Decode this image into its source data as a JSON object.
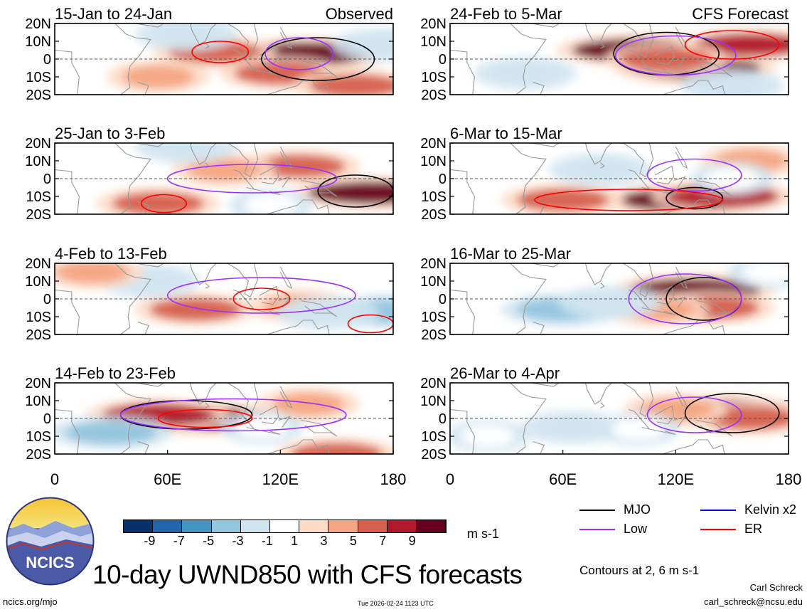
{
  "figure": {
    "main_title": "10-day UWND850 with CFS forecasts",
    "contour_note": "Contours at 2, 6 m s-1",
    "author": "Carl Schreck",
    "email": "carl_schreck@ncsu.edu",
    "website": "ncics.org/mjo",
    "timestamp": "Tue 2026-02-24 1123 UTC",
    "logo_text": "NCICS",
    "column_labels": {
      "left": "Observed",
      "right": "CFS Forecast"
    },
    "units": "m s-1"
  },
  "colors": {
    "observed_palette": [
      "#08306b",
      "#2166ac",
      "#4393c3",
      "#92c5de",
      "#d1e5f0",
      "#ffffff",
      "#fddbc7",
      "#f4a582",
      "#d6604d",
      "#b2182b",
      "#67001f"
    ],
    "mjo": "#000000",
    "low": "#9b30ff",
    "kelvin": "#0000ff",
    "er": "#ff0000",
    "land": "#999999"
  },
  "chart_data": [
    {
      "type": "heatmap",
      "title": "15-Jan to 24-Jan",
      "panel_label": "Observed",
      "xlabel": "",
      "ylabel": "",
      "x_ticks": [
        "0",
        "60E",
        "120E",
        "180"
      ],
      "y_ticks": [
        "20N",
        "10N",
        "0",
        "10S",
        "20S"
      ],
      "xlim": [
        0,
        180
      ],
      "ylim": [
        -20,
        20
      ],
      "anomaly_blobs": [
        {
          "lon": 135,
          "lat": 3,
          "value": 9
        },
        {
          "lon": 85,
          "lat": 4,
          "value": 5
        },
        {
          "lon": 120,
          "lat": -8,
          "value": 5
        },
        {
          "lon": 160,
          "lat": -15,
          "value": 5
        },
        {
          "lon": 55,
          "lat": -10,
          "value": 3
        },
        {
          "lon": 175,
          "lat": 8,
          "value": -3
        },
        {
          "lon": 70,
          "lat": 14,
          "value": -3
        }
      ],
      "contours": [
        {
          "kind": "MJO",
          "lon": 140,
          "lat": 0,
          "rlon": 30,
          "rlat": 12
        },
        {
          "kind": "Low",
          "lon": 130,
          "lat": 3,
          "rlon": 18,
          "rlat": 9
        },
        {
          "kind": "ER",
          "lon": 88,
          "lat": 4,
          "rlon": 15,
          "rlat": 6
        }
      ]
    },
    {
      "type": "heatmap",
      "title": "24-Feb to 5-Mar",
      "panel_label": "CFS Forecast",
      "xlabel": "",
      "ylabel": "",
      "x_ticks": [
        "0",
        "60E",
        "120E",
        "180"
      ],
      "y_ticks": [
        "20N",
        "10N",
        "0",
        "10S",
        "20S"
      ],
      "xlim": [
        0,
        180
      ],
      "ylim": [
        -20,
        20
      ],
      "anomaly_blobs": [
        {
          "lon": 100,
          "lat": 5,
          "value": 9
        },
        {
          "lon": 130,
          "lat": -5,
          "value": 9
        },
        {
          "lon": 160,
          "lat": 8,
          "value": 7
        },
        {
          "lon": 115,
          "lat": 0,
          "value": 5
        },
        {
          "lon": 40,
          "lat": -8,
          "value": -3
        },
        {
          "lon": 150,
          "lat": -15,
          "value": -3
        }
      ],
      "contours": [
        {
          "kind": "MJO",
          "lon": 115,
          "lat": 3,
          "rlon": 28,
          "rlat": 12
        },
        {
          "kind": "Low",
          "lon": 120,
          "lat": 2,
          "rlon": 32,
          "rlat": 11
        },
        {
          "kind": "ER",
          "lon": 150,
          "lat": 8,
          "rlon": 25,
          "rlat": 8
        }
      ]
    },
    {
      "type": "heatmap",
      "title": "25-Jan to 3-Feb",
      "panel_label": "",
      "xlabel": "",
      "ylabel": "",
      "x_ticks": [
        "0",
        "60E",
        "120E",
        "180"
      ],
      "y_ticks": [
        "20N",
        "10N",
        "0",
        "10S",
        "20S"
      ],
      "xlim": [
        0,
        180
      ],
      "ylim": [
        -20,
        20
      ],
      "anomaly_blobs": [
        {
          "lon": 170,
          "lat": -8,
          "value": 9
        },
        {
          "lon": 130,
          "lat": 7,
          "value": 5
        },
        {
          "lon": 55,
          "lat": -14,
          "value": 5
        },
        {
          "lon": 90,
          "lat": 5,
          "value": 3
        },
        {
          "lon": 70,
          "lat": 18,
          "value": -3
        },
        {
          "lon": 115,
          "lat": -15,
          "value": -1
        }
      ],
      "contours": [
        {
          "kind": "MJO",
          "lon": 160,
          "lat": -7,
          "rlon": 20,
          "rlat": 9
        },
        {
          "kind": "Low",
          "lon": 105,
          "lat": 0,
          "rlon": 45,
          "rlat": 8
        },
        {
          "kind": "ER",
          "lon": 58,
          "lat": -14,
          "rlon": 12,
          "rlat": 5
        }
      ]
    },
    {
      "type": "heatmap",
      "title": "6-Mar to 15-Mar",
      "panel_label": "",
      "xlabel": "",
      "ylabel": "",
      "x_ticks": [
        "0",
        "60E",
        "120E",
        "180"
      ],
      "y_ticks": [
        "20N",
        "10N",
        "0",
        "10S",
        "20S"
      ],
      "xlim": [
        0,
        180
      ],
      "ylim": [
        -20,
        20
      ],
      "anomaly_blobs": [
        {
          "lon": 125,
          "lat": -12,
          "value": 9
        },
        {
          "lon": 145,
          "lat": -10,
          "value": 7
        },
        {
          "lon": 60,
          "lat": -12,
          "value": 5
        },
        {
          "lon": 160,
          "lat": 10,
          "value": 3
        },
        {
          "lon": 80,
          "lat": 5,
          "value": -3
        },
        {
          "lon": 150,
          "lat": 0,
          "value": -1
        }
      ],
      "contours": [
        {
          "kind": "MJO",
          "lon": 130,
          "lat": -11,
          "rlon": 15,
          "rlat": 6
        },
        {
          "kind": "Low",
          "lon": 130,
          "lat": 2,
          "rlon": 25,
          "rlat": 9
        },
        {
          "kind": "ER",
          "lon": 95,
          "lat": -12,
          "rlon": 50,
          "rlat": 6
        }
      ]
    },
    {
      "type": "heatmap",
      "title": "4-Feb to 13-Feb",
      "panel_label": "",
      "xlabel": "",
      "ylabel": "",
      "x_ticks": [
        "0",
        "60E",
        "120E",
        "180"
      ],
      "y_ticks": [
        "20N",
        "10N",
        "0",
        "10S",
        "20S"
      ],
      "xlim": [
        0,
        180
      ],
      "ylim": [
        -20,
        20
      ],
      "anomaly_blobs": [
        {
          "lon": 75,
          "lat": -6,
          "value": 5
        },
        {
          "lon": 130,
          "lat": -4,
          "value": 3
        },
        {
          "lon": 175,
          "lat": -7,
          "value": -5
        },
        {
          "lon": 145,
          "lat": -8,
          "value": -3
        },
        {
          "lon": 50,
          "lat": 10,
          "value": -3
        },
        {
          "lon": 20,
          "lat": 15,
          "value": 3
        }
      ],
      "contours": [
        {
          "kind": "Low",
          "lon": 110,
          "lat": 2,
          "rlon": 50,
          "rlat": 10
        },
        {
          "kind": "ER",
          "lon": 110,
          "lat": 0,
          "rlon": 15,
          "rlat": 6
        },
        {
          "kind": "ER",
          "lon": 168,
          "lat": -14,
          "rlon": 12,
          "rlat": 5
        }
      ]
    },
    {
      "type": "heatmap",
      "title": "16-Mar to 25-Mar",
      "panel_label": "",
      "xlabel": "",
      "ylabel": "",
      "x_ticks": [
        "0",
        "60E",
        "120E",
        "180"
      ],
      "y_ticks": [
        "20N",
        "10N",
        "0",
        "10S",
        "20S"
      ],
      "xlim": [
        0,
        180
      ],
      "ylim": [
        -20,
        20
      ],
      "anomaly_blobs": [
        {
          "lon": 130,
          "lat": 5,
          "value": 9
        },
        {
          "lon": 140,
          "lat": -5,
          "value": 5
        },
        {
          "lon": 110,
          "lat": -6,
          "value": 3
        },
        {
          "lon": 60,
          "lat": -6,
          "value": -5
        },
        {
          "lon": 85,
          "lat": -2,
          "value": -3
        },
        {
          "lon": 170,
          "lat": 15,
          "value": -1
        }
      ],
      "contours": [
        {
          "kind": "MJO",
          "lon": 135,
          "lat": 0,
          "rlon": 20,
          "rlat": 12
        },
        {
          "kind": "Low",
          "lon": 125,
          "lat": 0,
          "rlon": 30,
          "rlat": 14
        }
      ]
    },
    {
      "type": "heatmap",
      "title": "14-Feb to 23-Feb",
      "panel_label": "",
      "xlabel": "",
      "ylabel": "",
      "x_ticks": [
        "0",
        "60E",
        "120E",
        "180"
      ],
      "y_ticks": [
        "20N",
        "10N",
        "0",
        "10S",
        "20S"
      ],
      "xlim": [
        0,
        180
      ],
      "ylim": [
        -20,
        20
      ],
      "anomaly_blobs": [
        {
          "lon": 80,
          "lat": 0,
          "value": 9
        },
        {
          "lon": 55,
          "lat": 2,
          "value": 7
        },
        {
          "lon": 135,
          "lat": 8,
          "value": 3
        },
        {
          "lon": 150,
          "lat": -20,
          "value": 5
        },
        {
          "lon": 30,
          "lat": -8,
          "value": -5
        },
        {
          "lon": 110,
          "lat": -5,
          "value": -1
        }
      ],
      "contours": [
        {
          "kind": "MJO",
          "lon": 70,
          "lat": 2,
          "rlon": 35,
          "rlat": 8
        },
        {
          "kind": "Low",
          "lon": 95,
          "lat": 2,
          "rlon": 60,
          "rlat": 9
        },
        {
          "kind": "ER",
          "lon": 80,
          "lat": 0,
          "rlon": 25,
          "rlat": 5
        }
      ]
    },
    {
      "type": "heatmap",
      "title": "26-Mar to 4-Apr",
      "panel_label": "",
      "xlabel": "",
      "ylabel": "",
      "x_ticks": [
        "0",
        "60E",
        "120E",
        "180"
      ],
      "y_ticks": [
        "20N",
        "10N",
        "0",
        "10S",
        "20S"
      ],
      "xlim": [
        0,
        180
      ],
      "ylim": [
        -20,
        20
      ],
      "anomaly_blobs": [
        {
          "lon": 145,
          "lat": 4,
          "value": 9
        },
        {
          "lon": 160,
          "lat": 0,
          "value": 5
        },
        {
          "lon": 120,
          "lat": 5,
          "value": 3
        },
        {
          "lon": 65,
          "lat": -5,
          "value": -3
        },
        {
          "lon": 100,
          "lat": -6,
          "value": -1
        },
        {
          "lon": 20,
          "lat": -10,
          "value": -1
        }
      ],
      "contours": [
        {
          "kind": "MJO",
          "lon": 150,
          "lat": 3,
          "rlon": 25,
          "rlat": 11
        },
        {
          "kind": "Low",
          "lon": 130,
          "lat": 2,
          "rlon": 25,
          "rlat": 10
        }
      ]
    },
    {
      "type": "colorbar",
      "title": "",
      "ticks": [
        "-9",
        "-7",
        "-5",
        "-3",
        "-1",
        "1",
        "3",
        "5",
        "7",
        "9"
      ],
      "units": "m s-1"
    }
  ],
  "legend": {
    "items": [
      {
        "label": "MJO",
        "color": "#000000"
      },
      {
        "label": "Kelvin x2",
        "color": "#0000ff"
      },
      {
        "label": "Low",
        "color": "#9b30ff"
      },
      {
        "label": "ER",
        "color": "#ff0000"
      }
    ]
  }
}
